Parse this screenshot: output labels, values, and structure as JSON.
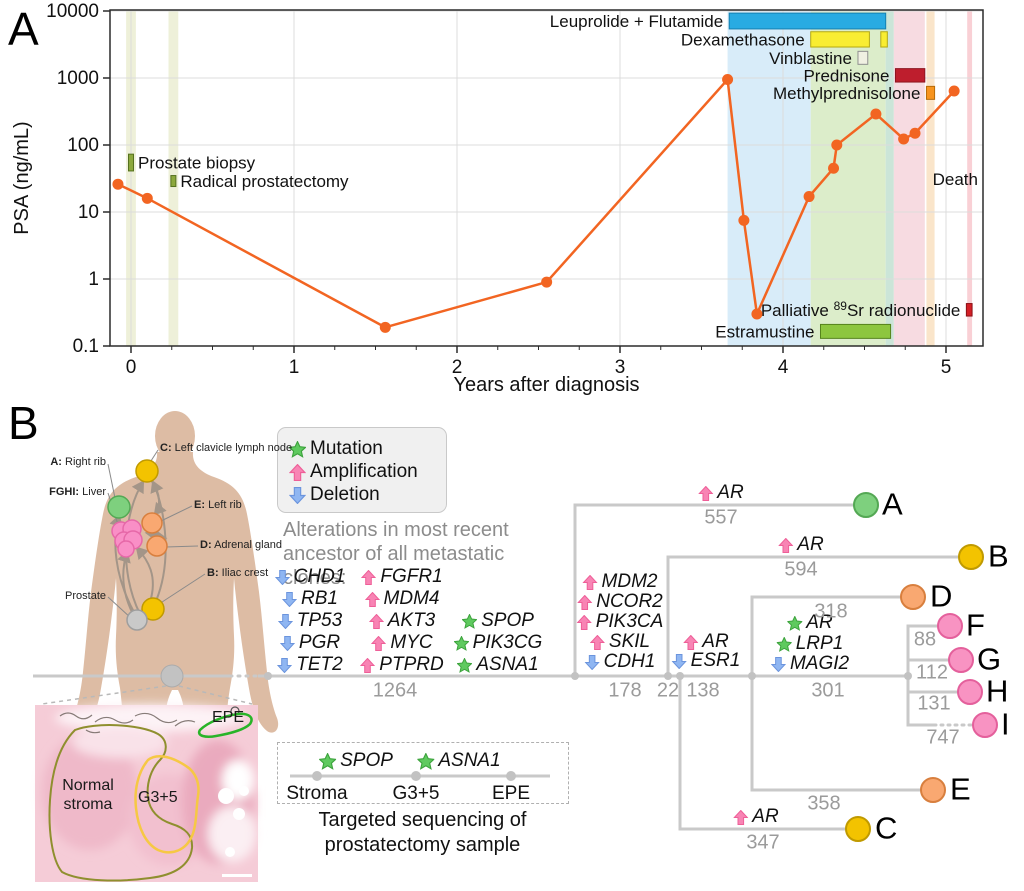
{
  "panel_a": {
    "label": "A"
  },
  "chart_data": {
    "type": "line",
    "title": "",
    "xlabel": "Years after diagnosis",
    "ylabel": "PSA (ng/mL)",
    "x_ticks": [
      0,
      1,
      2,
      3,
      4,
      5
    ],
    "y_ticks": [
      0.1,
      1,
      10,
      100,
      1000,
      10000
    ],
    "y_scale": "log",
    "xlim": [
      -0.13,
      5.23
    ],
    "ylim": [
      0.1,
      10000
    ],
    "grid": true,
    "series": [
      {
        "name": "PSA",
        "color": "#f26522",
        "points": [
          [
            -0.08,
            26
          ],
          [
            0.1,
            16
          ],
          [
            1.56,
            0.19
          ],
          [
            2.55,
            0.9
          ],
          [
            3.66,
            950
          ],
          [
            3.76,
            7.5
          ],
          [
            3.84,
            0.3
          ],
          [
            4.16,
            17
          ],
          [
            4.31,
            45
          ],
          [
            4.33,
            100
          ],
          [
            4.57,
            290
          ],
          [
            4.74,
            123
          ],
          [
            4.81,
            150
          ],
          [
            5.05,
            640
          ]
        ]
      }
    ],
    "events": [
      {
        "label": "Prostate biopsy",
        "x": 0.0,
        "y_lo": 41,
        "y_hi": 73,
        "color": "#8ca83d",
        "border": "#55711f"
      },
      {
        "label": "Radical prostatectomy",
        "x": 0.26,
        "y_lo": 24,
        "y_hi": 35,
        "color": "#8ca83d",
        "border": "#55711f"
      }
    ],
    "death_label": "Death",
    "bands": [
      {
        "x1": -0.03,
        "x2": 0.03,
        "color": "#eef0d9"
      },
      {
        "x1": 0.23,
        "x2": 0.29,
        "color": "#eef0d9"
      },
      {
        "x1": 3.66,
        "x2": 4.17,
        "color": "#d8ecf9"
      },
      {
        "x1": 4.17,
        "x2": 4.63,
        "color": "#dcedca"
      },
      {
        "x1": 4.63,
        "x2": 4.68,
        "color": "#cbe5d8"
      },
      {
        "x1": 4.68,
        "x2": 4.87,
        "color": "#f7dbe1"
      },
      {
        "x1": 4.88,
        "x2": 4.93,
        "color": "#fae5ca"
      },
      {
        "x1": 5.13,
        "x2": 5.16,
        "color": "#f9d0d5"
      }
    ],
    "treatments": [
      {
        "label": "Leuprolide + Flutamide",
        "segments": [
          [
            3.67,
            4.63
          ]
        ],
        "y_lo": 5400,
        "y_hi": 9300,
        "color": "#29abe2",
        "border": "#1580b0"
      },
      {
        "label": "Dexamethasone",
        "segments": [
          [
            4.17,
            4.53
          ],
          [
            4.6,
            4.64
          ]
        ],
        "y_lo": 2900,
        "y_hi": 4900,
        "color": "#f9ed32",
        "border": "#b5a90f"
      },
      {
        "label": "Vinblastine",
        "segments": [
          [
            4.46,
            4.52
          ]
        ],
        "y_lo": 1600,
        "y_hi": 2500,
        "color": "#f0f0e2",
        "border": "#8f8f8f"
      },
      {
        "label": "Prednisone",
        "segments": [
          [
            4.69,
            4.87
          ]
        ],
        "y_lo": 870,
        "y_hi": 1380,
        "color": "#be1e2d",
        "border": "#8c1520"
      },
      {
        "label": "Methylprednisolone",
        "segments": [
          [
            4.88,
            4.93
          ]
        ],
        "y_lo": 480,
        "y_hi": 750,
        "color": "#f7941e",
        "border": "#b76a08"
      },
      {
        "label": "Estramustine",
        "segments": [
          [
            4.23,
            4.66
          ]
        ],
        "y_lo": 0.13,
        "y_hi": 0.21,
        "color": "#8dc63f",
        "border": "#55831c"
      },
      {
        "label_pre": "Palliative ",
        "label_sup": "89",
        "label_post": "Sr radionuclide",
        "segments": [
          [
            5.125,
            5.16
          ]
        ],
        "y_lo": 0.28,
        "y_hi": 0.43,
        "color": "#d31f26",
        "border": "#8c1016"
      }
    ]
  },
  "panel_b": {
    "label": "B",
    "marker_colors": {
      "mutation": "#5fca5f",
      "amplification": "#f884b4",
      "deletion": "#8fb6f2"
    },
    "marker_borders": {
      "mutation": "#3da33d",
      "amplification": "#ee5f98",
      "deletion": "#6b94dd"
    },
    "legend": {
      "items": [
        {
          "type": "mutation",
          "label": "Mutation"
        },
        {
          "type": "amplification",
          "label": "Amplification"
        },
        {
          "type": "deletion",
          "label": "Deletion"
        }
      ]
    },
    "anatomy": {
      "sites": [
        {
          "prefix": "C:",
          "name": "Left clavicle lymph node"
        },
        {
          "prefix": "A:",
          "name": "Right rib"
        },
        {
          "prefix": "FGHI:",
          "name": "Liver"
        },
        {
          "prefix": "E:",
          "name": "Left rib"
        },
        {
          "prefix": "D:",
          "name": "Adrenal gland"
        },
        {
          "prefix": "B:",
          "name": "Iliac crest"
        },
        {
          "prefix": "",
          "name": "Prostate"
        }
      ]
    },
    "ancestor": {
      "heading": [
        "Alterations in most recent",
        "ancestor of all metastatic clones:"
      ],
      "deletions": [
        "CHD1",
        "RB1",
        "TP53",
        "PGR",
        "TET2"
      ],
      "amplifications": [
        "FGFR1",
        "MDM4",
        "AKT3",
        "MYC",
        "PTPRD"
      ],
      "mutations": [
        "SPOP",
        "PIK3CG",
        "ASNA1"
      ],
      "trunk_length": "1264"
    },
    "tree": {
      "internal": [
        {
          "id": "seg178",
          "length": "178",
          "genes": [
            {
              "t": "amplification",
              "g": "MDM2"
            },
            {
              "t": "amplification",
              "g": "NCOR2"
            },
            {
              "t": "amplification",
              "g": "PIK3CA"
            },
            {
              "t": "amplification",
              "g": "SKIL"
            },
            {
              "t": "deletion",
              "g": "CDH1"
            }
          ]
        },
        {
          "id": "seg22",
          "length": "22",
          "genes": []
        },
        {
          "id": "seg138",
          "length": "138",
          "genes": [
            {
              "t": "amplification",
              "g": "AR"
            },
            {
              "t": "deletion",
              "g": "ESR1"
            }
          ]
        },
        {
          "id": "seg301",
          "length": "301",
          "genes": [
            {
              "t": "mutation",
              "g": "AR"
            },
            {
              "t": "mutation",
              "g": "LRP1"
            },
            {
              "t": "deletion",
              "g": "MAGI2"
            }
          ]
        }
      ],
      "terminals": [
        {
          "id": "A",
          "length": "557",
          "color": "#7ed07e",
          "border": "#54a854",
          "genes": [
            {
              "t": "amplification",
              "g": "AR"
            }
          ]
        },
        {
          "id": "B",
          "length": "594",
          "color": "#f3c300",
          "border": "#c09a00",
          "genes": [
            {
              "t": "amplification",
              "g": "AR"
            }
          ]
        },
        {
          "id": "C",
          "length": "347",
          "color": "#f3c300",
          "border": "#c09a00",
          "genes": [
            {
              "t": "amplification",
              "g": "AR"
            }
          ]
        },
        {
          "id": "D",
          "length": "318",
          "color": "#f9a871",
          "border": "#d87f3e",
          "genes": []
        },
        {
          "id": "E",
          "length": "358",
          "color": "#f9a871",
          "border": "#d87f3e",
          "genes": []
        },
        {
          "id": "F",
          "length": "88",
          "color": "#f893c2",
          "border": "#e4609c",
          "genes": []
        },
        {
          "id": "G",
          "length": "112",
          "color": "#f893c2",
          "border": "#e4609c",
          "genes": []
        },
        {
          "id": "H",
          "length": "131",
          "color": "#f893c2",
          "border": "#e4609c",
          "genes": []
        },
        {
          "id": "I",
          "length": "747",
          "color": "#f893c2",
          "border": "#e4609c",
          "genes": []
        }
      ]
    },
    "histology": {
      "epe": "EPE",
      "stroma": [
        "Normal",
        "stroma"
      ],
      "g35": "G3+5"
    },
    "targeted": {
      "samples": [
        "Stroma",
        "G3+5",
        "EPE"
      ],
      "genes": [
        {
          "t": "mutation",
          "g": "SPOP"
        },
        {
          "t": "mutation",
          "g": "ASNA1"
        }
      ],
      "caption": [
        "Targeted sequencing of",
        "prostatectomy sample"
      ]
    }
  }
}
